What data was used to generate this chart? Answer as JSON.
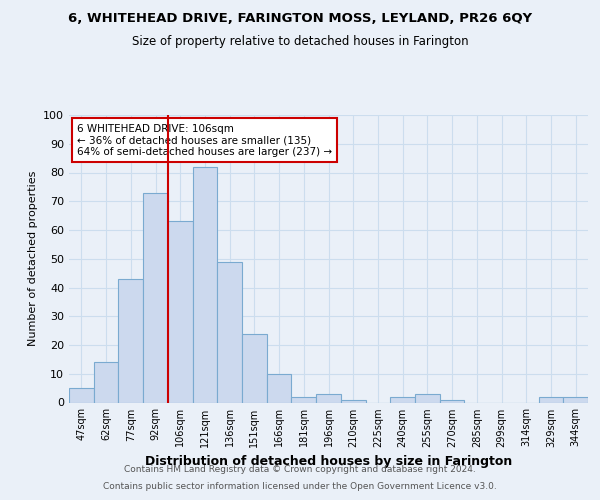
{
  "title1": "6, WHITEHEAD DRIVE, FARINGTON MOSS, LEYLAND, PR26 6QY",
  "title2": "Size of property relative to detached houses in Farington",
  "xlabel": "Distribution of detached houses by size in Farington",
  "ylabel": "Number of detached properties",
  "bins": [
    "47sqm",
    "62sqm",
    "77sqm",
    "92sqm",
    "106sqm",
    "121sqm",
    "136sqm",
    "151sqm",
    "166sqm",
    "181sqm",
    "196sqm",
    "210sqm",
    "225sqm",
    "240sqm",
    "255sqm",
    "270sqm",
    "285sqm",
    "299sqm",
    "314sqm",
    "329sqm",
    "344sqm"
  ],
  "values": [
    5,
    14,
    43,
    73,
    63,
    82,
    49,
    24,
    10,
    2,
    3,
    1,
    0,
    2,
    3,
    1,
    0,
    0,
    0,
    2,
    2
  ],
  "bar_color": "#ccd9ee",
  "bar_edge_color": "#7aaad0",
  "highlight_x": "106sqm",
  "highlight_line_color": "#cc0000",
  "annotation_text": "6 WHITEHEAD DRIVE: 106sqm\n← 36% of detached houses are smaller (135)\n64% of semi-detached houses are larger (237) →",
  "annotation_box_color": "#ffffff",
  "annotation_box_edge": "#cc0000",
  "footer1": "Contains HM Land Registry data © Crown copyright and database right 2024.",
  "footer2": "Contains public sector information licensed under the Open Government Licence v3.0.",
  "ylim": [
    0,
    100
  ],
  "grid_color": "#ccddee",
  "background_color": "#eaf0f8",
  "fig_bg_color": "#eaf0f8"
}
